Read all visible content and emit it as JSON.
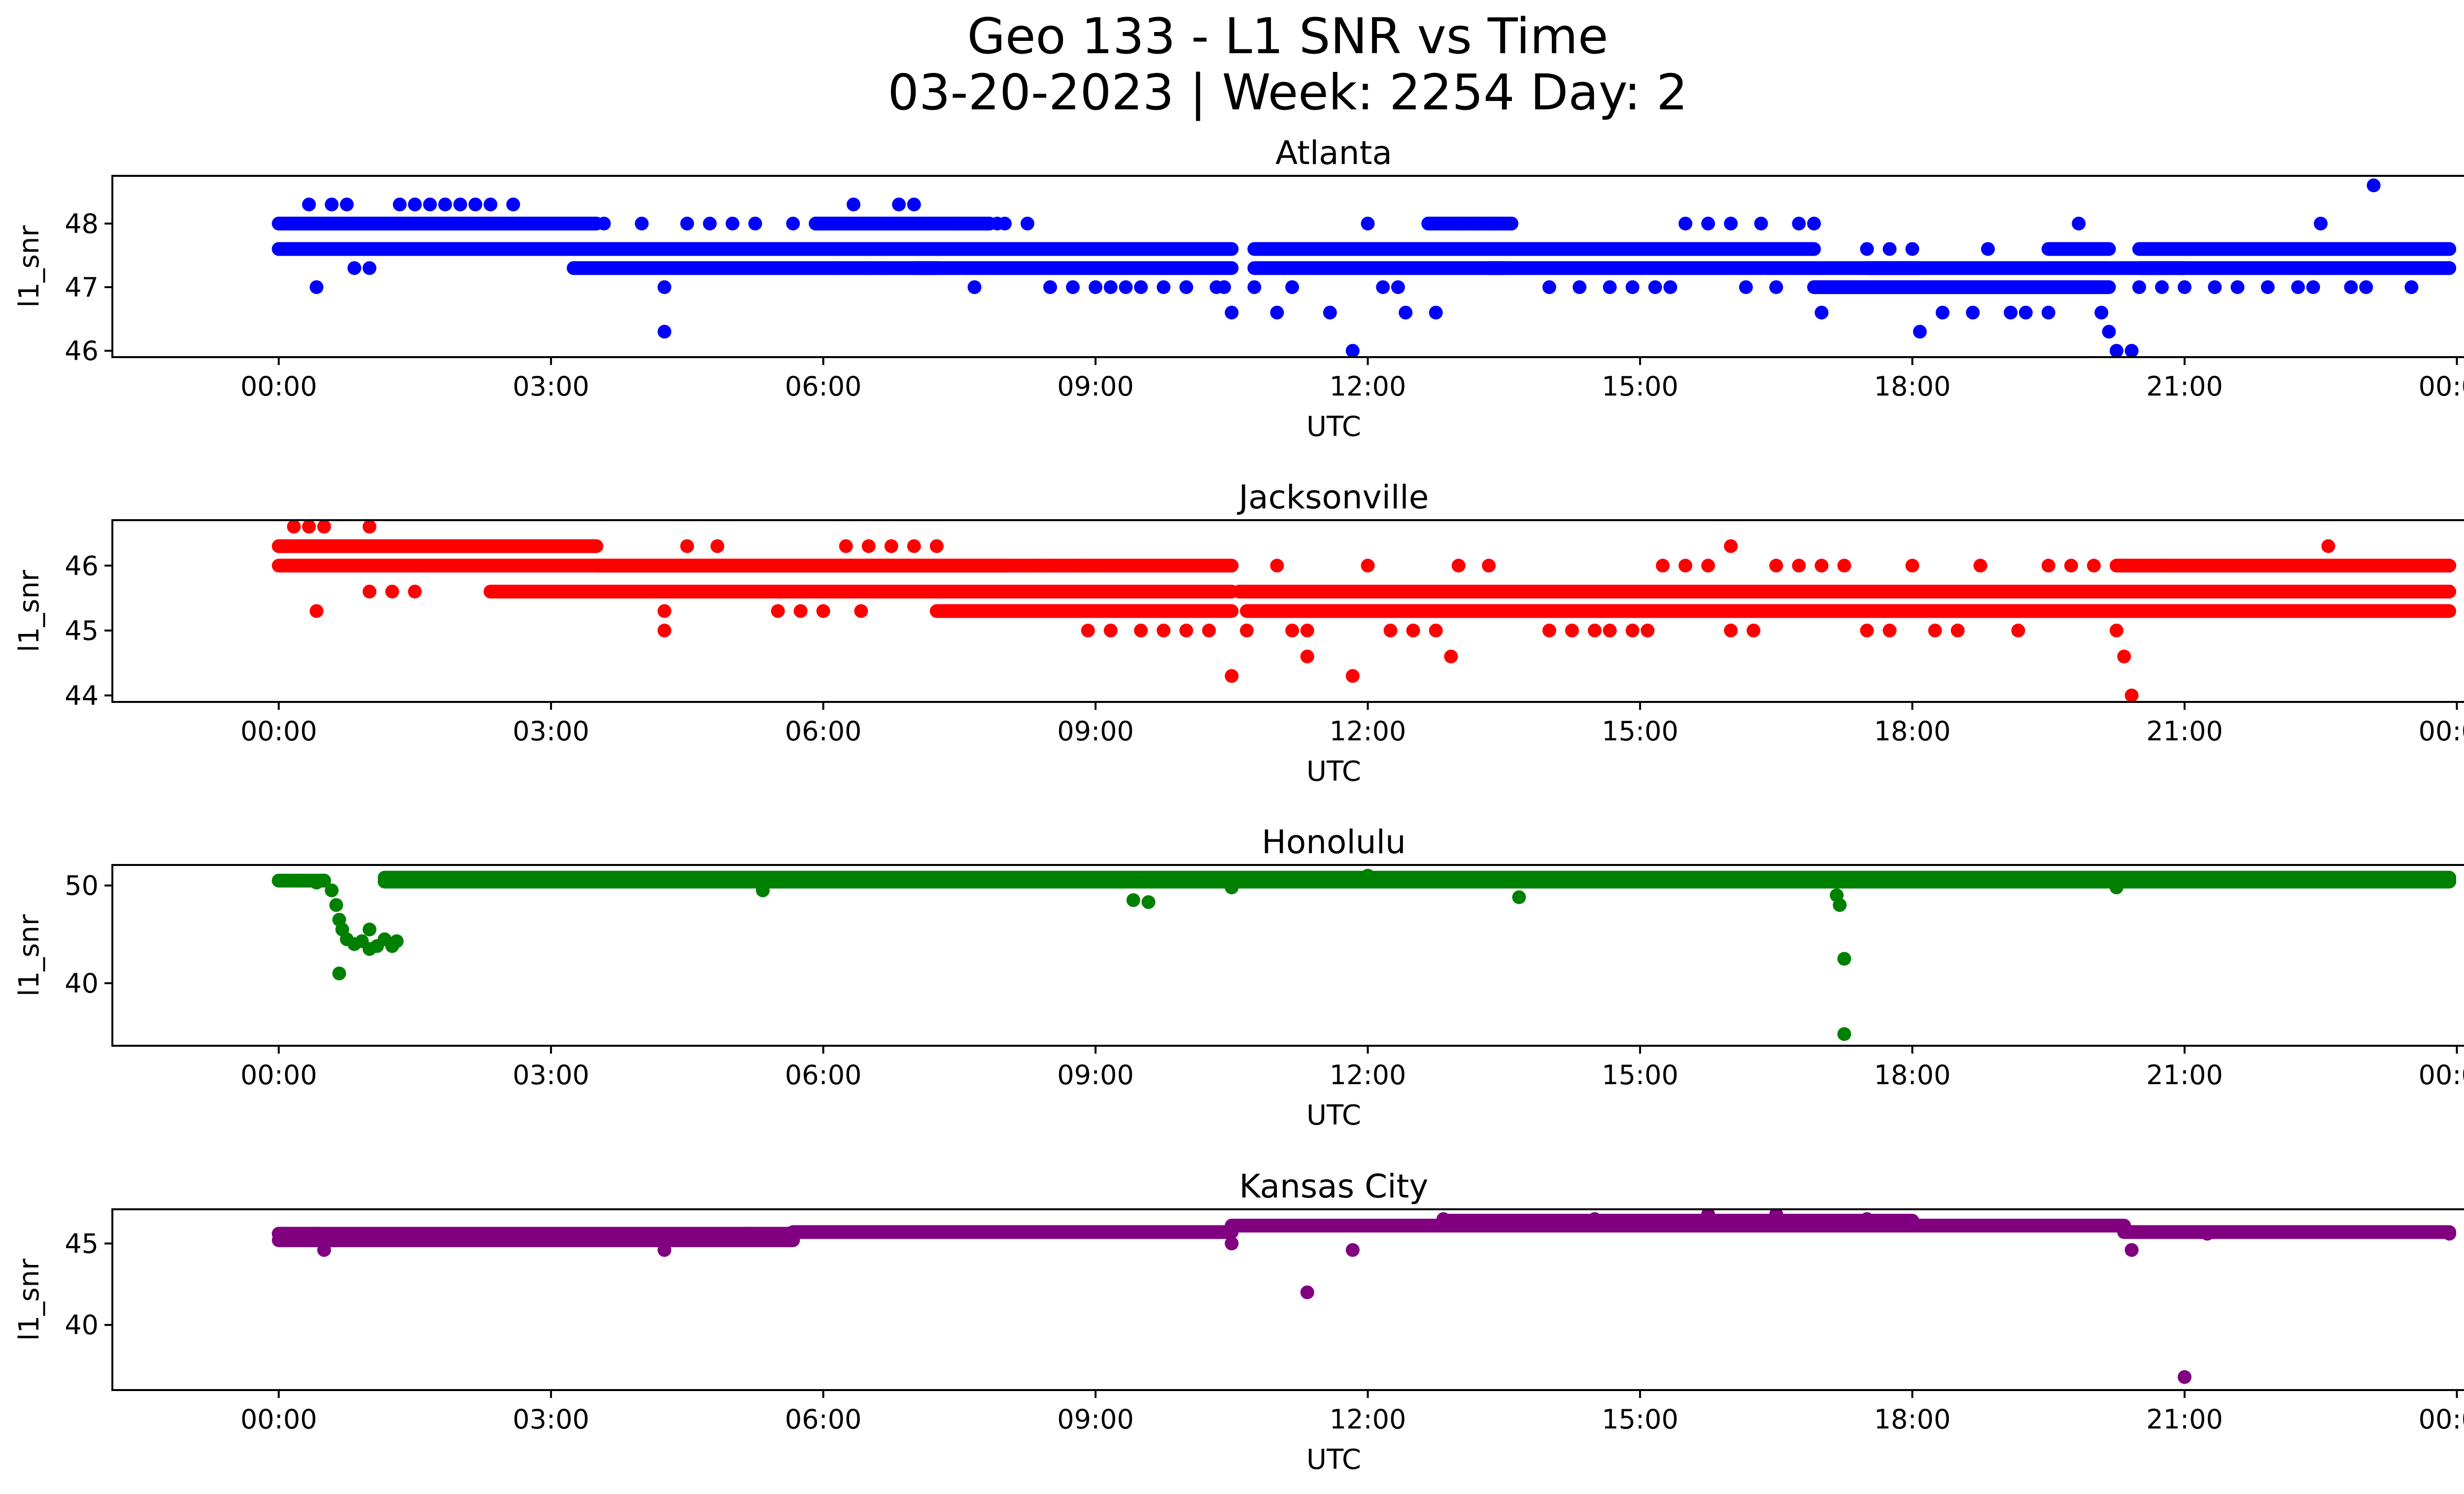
{
  "figure": {
    "title_line1": "Geo 133 - L1 SNR vs Time",
    "title_line2": "03-20-2023 | Week: 2254 Day: 2"
  },
  "chart_data": [
    {
      "type": "scatter",
      "title": "Atlanta",
      "xlabel": "UTC",
      "ylabel": "l1_snr",
      "color": "#0000ff",
      "xlim": [
        "-01:50",
        "25:05"
      ],
      "ylim": [
        45.9,
        48.75
      ],
      "x_ticks": [
        "00:00",
        "03:00",
        "06:00",
        "09:00",
        "12:00",
        "15:00",
        "18:00",
        "21:00",
        "00:00"
      ],
      "y_ticks": [
        46,
        47,
        48
      ],
      "points": [
        [
          "00:00",
          48.0
        ],
        [
          "00:00",
          47.6
        ],
        [
          "00:20",
          48.3
        ],
        [
          "00:25",
          47.0
        ],
        [
          "00:35",
          48.3
        ],
        [
          "00:45",
          48.3
        ],
        [
          "00:50",
          47.3
        ],
        [
          "01:00",
          47.3
        ],
        [
          "01:20",
          48.3
        ],
        [
          "01:30",
          48.3
        ],
        [
          "01:40",
          48.3
        ],
        [
          "01:50",
          48.3
        ],
        [
          "02:00",
          48.3
        ],
        [
          "02:10",
          48.3
        ],
        [
          "02:20",
          48.3
        ],
        [
          "02:35",
          48.3
        ],
        [
          "03:15",
          47.3
        ],
        [
          "03:35",
          48.0
        ],
        [
          "04:00",
          48.0
        ],
        [
          "04:15",
          47.0
        ],
        [
          "04:15",
          46.3
        ],
        [
          "04:30",
          48.0
        ],
        [
          "04:45",
          48.0
        ],
        [
          "05:00",
          48.0
        ],
        [
          "05:15",
          48.0
        ],
        [
          "05:40",
          48.0
        ],
        [
          "05:55",
          48.0
        ],
        [
          "06:10",
          47.3
        ],
        [
          "06:20",
          48.3
        ],
        [
          "06:30",
          47.3
        ],
        [
          "06:40",
          47.3
        ],
        [
          "06:50",
          48.3
        ],
        [
          "07:00",
          48.3
        ],
        [
          "07:30",
          48.0
        ],
        [
          "07:40",
          47.0
        ],
        [
          "07:55",
          48.0
        ],
        [
          "08:00",
          48.0
        ],
        [
          "08:15",
          48.0
        ],
        [
          "08:30",
          47.0
        ],
        [
          "08:45",
          47.0
        ],
        [
          "09:00",
          47.0
        ],
        [
          "09:10",
          47.0
        ],
        [
          "09:20",
          47.0
        ],
        [
          "09:30",
          47.0
        ],
        [
          "09:45",
          47.0
        ],
        [
          "10:00",
          47.0
        ],
        [
          "10:20",
          47.0
        ],
        [
          "10:25",
          47.0
        ],
        [
          "10:30",
          46.6
        ],
        [
          "10:45",
          47.0
        ],
        [
          "11:00",
          46.6
        ],
        [
          "11:10",
          47.0
        ],
        [
          "11:35",
          46.6
        ],
        [
          "11:50",
          46.0
        ],
        [
          "12:00",
          48.0
        ],
        [
          "12:10",
          47.0
        ],
        [
          "12:20",
          47.0
        ],
        [
          "12:25",
          46.6
        ],
        [
          "12:40",
          48.0
        ],
        [
          "12:45",
          46.6
        ],
        [
          "13:00",
          48.0
        ],
        [
          "13:10",
          48.0
        ],
        [
          "13:20",
          48.0
        ],
        [
          "13:35",
          48.0
        ],
        [
          "14:00",
          47.0
        ],
        [
          "14:20",
          47.0
        ],
        [
          "14:40",
          47.0
        ],
        [
          "14:55",
          47.0
        ],
        [
          "15:10",
          47.0
        ],
        [
          "15:20",
          47.0
        ],
        [
          "15:30",
          48.0
        ],
        [
          "15:45",
          48.0
        ],
        [
          "16:00",
          48.0
        ],
        [
          "16:10",
          47.0
        ],
        [
          "16:20",
          48.0
        ],
        [
          "16:30",
          47.0
        ],
        [
          "16:45",
          48.0
        ],
        [
          "16:55",
          48.0
        ],
        [
          "17:00",
          46.6
        ],
        [
          "17:30",
          47.6
        ],
        [
          "17:45",
          47.6
        ],
        [
          "18:00",
          47.6
        ],
        [
          "18:05",
          46.3
        ],
        [
          "18:20",
          46.6
        ],
        [
          "18:40",
          46.6
        ],
        [
          "18:50",
          47.6
        ],
        [
          "19:05",
          46.6
        ],
        [
          "19:15",
          46.6
        ],
        [
          "19:30",
          46.6
        ],
        [
          "19:50",
          48.0
        ],
        [
          "20:00",
          47.6
        ],
        [
          "20:05",
          46.6
        ],
        [
          "20:10",
          46.3
        ],
        [
          "20:15",
          46.0
        ],
        [
          "20:25",
          46.0
        ],
        [
          "20:30",
          47.0
        ],
        [
          "20:45",
          47.0
        ],
        [
          "21:00",
          47.0
        ],
        [
          "21:20",
          47.0
        ],
        [
          "21:35",
          47.0
        ],
        [
          "21:55",
          47.0
        ],
        [
          "22:15",
          47.0
        ],
        [
          "22:25",
          47.0
        ],
        [
          "22:30",
          48.0
        ],
        [
          "22:50",
          47.0
        ],
        [
          "23:00",
          47.0
        ],
        [
          "23:05",
          48.6
        ],
        [
          "23:30",
          47.0
        ],
        [
          "23:55",
          47.6
        ],
        [
          "23:55",
          47.3
        ]
      ],
      "bands": [
        {
          "from": "00:00",
          "to": "03:30",
          "y": 48.0
        },
        {
          "from": "00:00",
          "to": "10:30",
          "y": 47.6
        },
        {
          "from": "03:15",
          "to": "07:15",
          "y": 47.3
        },
        {
          "from": "05:55",
          "to": "07:50",
          "y": 48.0
        },
        {
          "from": "07:00",
          "to": "10:30",
          "y": 47.3
        },
        {
          "from": "10:45",
          "to": "16:55",
          "y": 47.6
        },
        {
          "from": "10:45",
          "to": "13:30",
          "y": 47.3
        },
        {
          "from": "13:20",
          "to": "18:05",
          "y": 47.3
        },
        {
          "from": "12:40",
          "to": "13:35",
          "y": 48.0
        },
        {
          "from": "16:55",
          "to": "20:10",
          "y": 47.0
        },
        {
          "from": "17:30",
          "to": "21:00",
          "y": 47.3
        },
        {
          "from": "19:30",
          "to": "20:10",
          "y": 47.6
        },
        {
          "from": "20:30",
          "to": "23:55",
          "y": 47.6
        },
        {
          "from": "20:30",
          "to": "23:55",
          "y": 47.3
        }
      ]
    },
    {
      "type": "scatter",
      "title": "Jacksonville",
      "xlabel": "UTC",
      "ylabel": "l1_snr",
      "color": "#ff0000",
      "xlim": [
        "-01:50",
        "25:05"
      ],
      "ylim": [
        43.9,
        46.7
      ],
      "x_ticks": [
        "00:00",
        "03:00",
        "06:00",
        "09:00",
        "12:00",
        "15:00",
        "18:00",
        "21:00",
        "00:00"
      ],
      "y_ticks": [
        44,
        45,
        46
      ],
      "points": [
        [
          "00:10",
          46.6
        ],
        [
          "00:20",
          46.6
        ],
        [
          "00:25",
          45.3
        ],
        [
          "00:30",
          46.6
        ],
        [
          "01:00",
          46.6
        ],
        [
          "01:00",
          45.6
        ],
        [
          "01:15",
          45.6
        ],
        [
          "01:30",
          45.6
        ],
        [
          "04:15",
          45.3
        ],
        [
          "04:15",
          45.0
        ],
        [
          "04:30",
          46.3
        ],
        [
          "04:50",
          46.3
        ],
        [
          "05:30",
          45.3
        ],
        [
          "05:45",
          45.3
        ],
        [
          "06:00",
          45.3
        ],
        [
          "06:15",
          46.3
        ],
        [
          "06:25",
          45.3
        ],
        [
          "06:30",
          46.3
        ],
        [
          "06:45",
          46.3
        ],
        [
          "07:00",
          46.3
        ],
        [
          "07:15",
          46.3
        ],
        [
          "07:25",
          45.3
        ],
        [
          "08:20",
          46.0
        ],
        [
          "08:30",
          46.0
        ],
        [
          "08:45",
          46.0
        ],
        [
          "08:55",
          45.0
        ],
        [
          "09:00",
          46.0
        ],
        [
          "09:10",
          45.0
        ],
        [
          "09:30",
          45.0
        ],
        [
          "09:45",
          45.0
        ],
        [
          "10:00",
          45.0
        ],
        [
          "10:15",
          45.0
        ],
        [
          "10:30",
          44.3
        ],
        [
          "10:40",
          45.0
        ],
        [
          "11:00",
          46.0
        ],
        [
          "11:10",
          45.0
        ],
        [
          "11:20",
          45.0
        ],
        [
          "11:20",
          44.6
        ],
        [
          "11:50",
          44.3
        ],
        [
          "12:00",
          46.0
        ],
        [
          "12:15",
          45.0
        ],
        [
          "12:30",
          45.0
        ],
        [
          "12:45",
          45.0
        ],
        [
          "12:55",
          44.6
        ],
        [
          "13:00",
          46.0
        ],
        [
          "13:20",
          46.0
        ],
        [
          "13:35",
          45.3
        ],
        [
          "14:00",
          45.0
        ],
        [
          "14:15",
          45.0
        ],
        [
          "14:30",
          45.0
        ],
        [
          "14:40",
          45.0
        ],
        [
          "14:55",
          45.0
        ],
        [
          "15:05",
          45.0
        ],
        [
          "15:15",
          46.0
        ],
        [
          "15:30",
          46.0
        ],
        [
          "15:45",
          46.0
        ],
        [
          "16:00",
          46.3
        ],
        [
          "16:00",
          45.0
        ],
        [
          "16:15",
          45.0
        ],
        [
          "16:30",
          46.0
        ],
        [
          "16:45",
          46.0
        ],
        [
          "17:00",
          46.0
        ],
        [
          "17:15",
          46.0
        ],
        [
          "17:30",
          45.0
        ],
        [
          "17:45",
          45.0
        ],
        [
          "18:00",
          46.0
        ],
        [
          "18:15",
          45.0
        ],
        [
          "18:30",
          45.0
        ],
        [
          "18:45",
          46.0
        ],
        [
          "19:10",
          45.0
        ],
        [
          "19:30",
          46.0
        ],
        [
          "19:45",
          46.0
        ],
        [
          "20:00",
          46.0
        ],
        [
          "20:15",
          45.0
        ],
        [
          "20:20",
          44.6
        ],
        [
          "20:25",
          44.0
        ],
        [
          "20:45",
          46.0
        ],
        [
          "21:00",
          45.3
        ],
        [
          "21:30",
          45.3
        ],
        [
          "22:00",
          45.3
        ],
        [
          "22:30",
          45.3
        ],
        [
          "22:35",
          46.3
        ],
        [
          "23:00",
          45.3
        ],
        [
          "23:30",
          45.3
        ],
        [
          "23:55",
          46.0
        ],
        [
          "23:55",
          45.6
        ]
      ],
      "bands": [
        {
          "from": "00:00",
          "to": "03:30",
          "y": 46.3
        },
        {
          "from": "00:00",
          "to": "10:30",
          "y": 46.0
        },
        {
          "from": "02:20",
          "to": "10:30",
          "y": 45.6
        },
        {
          "from": "03:30",
          "to": "08:00",
          "y": 46.0
        },
        {
          "from": "07:15",
          "to": "10:30",
          "y": 45.3
        },
        {
          "from": "10:35",
          "to": "23:55",
          "y": 45.6
        },
        {
          "from": "10:40",
          "to": "17:00",
          "y": 45.3
        },
        {
          "from": "17:00",
          "to": "23:55",
          "y": 45.3
        },
        {
          "from": "20:15",
          "to": "23:55",
          "y": 46.0
        }
      ]
    },
    {
      "type": "scatter",
      "title": "Honolulu",
      "xlabel": "UTC",
      "ylabel": "l1_snr",
      "color": "#008000",
      "xlim": [
        "-01:50",
        "25:05"
      ],
      "ylim": [
        33.6,
        52.1
      ],
      "x_ticks": [
        "00:00",
        "03:00",
        "06:00",
        "09:00",
        "12:00",
        "15:00",
        "18:00",
        "21:00",
        "00:00"
      ],
      "y_ticks": [
        40,
        50
      ],
      "points": [
        [
          "00:00",
          50.5
        ],
        [
          "00:15",
          50.5
        ],
        [
          "00:25",
          50.3
        ],
        [
          "00:30",
          50.5
        ],
        [
          "00:35",
          49.5
        ],
        [
          "00:38",
          48.0
        ],
        [
          "00:40",
          46.5
        ],
        [
          "00:40",
          41.0
        ],
        [
          "00:42",
          45.5
        ],
        [
          "00:45",
          44.5
        ],
        [
          "00:50",
          44.0
        ],
        [
          "00:55",
          44.3
        ],
        [
          "01:00",
          43.5
        ],
        [
          "01:00",
          45.5
        ],
        [
          "01:05",
          43.8
        ],
        [
          "01:10",
          44.5
        ],
        [
          "01:15",
          43.8
        ],
        [
          "01:18",
          44.3
        ],
        [
          "05:20",
          49.5
        ],
        [
          "09:25",
          48.5
        ],
        [
          "09:35",
          48.3
        ],
        [
          "10:30",
          49.8
        ],
        [
          "12:00",
          51.0
        ],
        [
          "13:40",
          48.8
        ],
        [
          "17:10",
          49.0
        ],
        [
          "17:12",
          48.0
        ],
        [
          "17:15",
          42.5
        ],
        [
          "17:15",
          34.8
        ],
        [
          "17:45",
          50.8
        ],
        [
          "20:15",
          49.8
        ],
        [
          "21:00",
          50.8
        ],
        [
          "23:55",
          50.5
        ]
      ],
      "bands": [
        {
          "from": "00:00",
          "to": "00:30",
          "y": 50.5
        },
        {
          "from": "01:10",
          "to": "23:55",
          "y": 50.4
        },
        {
          "from": "01:10",
          "to": "23:55",
          "y": 50.8
        }
      ]
    },
    {
      "type": "scatter",
      "title": "Kansas City",
      "xlabel": "UTC",
      "ylabel": "l1_snr",
      "color": "#800080",
      "xlim": [
        "-01:50",
        "25:05"
      ],
      "ylim": [
        36.0,
        47.1
      ],
      "x_ticks": [
        "00:00",
        "03:00",
        "06:00",
        "09:00",
        "12:00",
        "15:00",
        "18:00",
        "21:00",
        "00:00"
      ],
      "y_ticks": [
        40,
        45
      ],
      "points": [
        [
          "00:00",
          45.6
        ],
        [
          "00:30",
          44.6
        ],
        [
          "04:15",
          44.6
        ],
        [
          "10:30",
          45.0
        ],
        [
          "11:20",
          42.0
        ],
        [
          "11:50",
          44.6
        ],
        [
          "12:50",
          46.5
        ],
        [
          "14:30",
          46.5
        ],
        [
          "15:45",
          46.8
        ],
        [
          "16:30",
          46.8
        ],
        [
          "17:30",
          46.5
        ],
        [
          "20:25",
          44.6
        ],
        [
          "21:00",
          36.8
        ],
        [
          "21:15",
          45.6
        ],
        [
          "23:55",
          45.6
        ]
      ],
      "bands": [
        {
          "from": "00:00",
          "to": "05:40",
          "y": 45.6
        },
        {
          "from": "00:00",
          "to": "05:40",
          "y": 45.2
        },
        {
          "from": "05:40",
          "to": "10:30",
          "y": 45.7
        },
        {
          "from": "10:30",
          "to": "20:20",
          "y": 46.1
        },
        {
          "from": "12:50",
          "to": "18:00",
          "y": 46.4
        },
        {
          "from": "20:20",
          "to": "23:55",
          "y": 45.7
        }
      ]
    }
  ]
}
